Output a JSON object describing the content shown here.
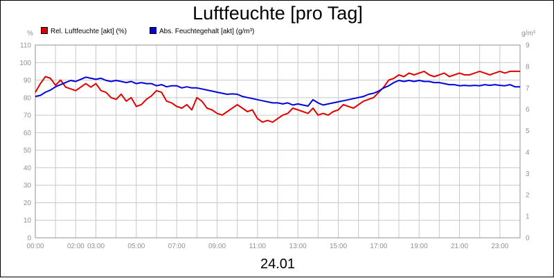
{
  "title": "Luftfeuchte [pro Tag]",
  "date": "24.01",
  "units": {
    "left": "%",
    "right": "g/m³"
  },
  "legend": [
    {
      "label": "Rel. Luftfeuchte [akt] (%)",
      "color": "#e00000"
    },
    {
      "label": "Abs. Feuchtegehalt [akt] (g/m³)",
      "color": "#0000dd"
    }
  ],
  "chart_data": {
    "type": "line",
    "title": "Luftfeuchte [pro Tag]",
    "xlabel": "24.01",
    "x_range_hours": [
      0,
      24
    ],
    "x_ticks": [
      {
        "h": 0,
        "label": "00:00"
      },
      {
        "h": 2,
        "label": "02:00"
      },
      {
        "h": 3,
        "label": "03:00"
      },
      {
        "h": 5,
        "label": "05:00"
      },
      {
        "h": 7,
        "label": "07:00"
      },
      {
        "h": 9,
        "label": "09:00"
      },
      {
        "h": 11,
        "label": "11:00"
      },
      {
        "h": 13,
        "label": "13:00"
      },
      {
        "h": 15,
        "label": "15:00"
      },
      {
        "h": 17,
        "label": "17:00"
      },
      {
        "h": 19,
        "label": "19:00"
      },
      {
        "h": 21,
        "label": "21:00"
      },
      {
        "h": 23,
        "label": "23:00"
      }
    ],
    "y_left": {
      "unit": "%",
      "min": 0,
      "max": 110,
      "ticks": [
        0,
        10,
        20,
        30,
        40,
        50,
        60,
        70,
        80,
        90,
        100,
        110
      ]
    },
    "y_right": {
      "unit": "g/m³",
      "min": 0,
      "max": 9,
      "ticks": [
        0,
        1,
        2,
        3,
        4,
        5,
        6,
        7,
        8,
        9
      ]
    },
    "grid": true,
    "legend_position": "top-left",
    "series": [
      {
        "name": "Rel. Luftfeuchte [akt] (%)",
        "color": "#e00000",
        "axis": "left",
        "points": [
          [
            0.0,
            83
          ],
          [
            0.25,
            88
          ],
          [
            0.5,
            92
          ],
          [
            0.75,
            91
          ],
          [
            1.0,
            87
          ],
          [
            1.25,
            90
          ],
          [
            1.5,
            86
          ],
          [
            1.75,
            85
          ],
          [
            2.0,
            84
          ],
          [
            2.25,
            86
          ],
          [
            2.5,
            88
          ],
          [
            2.75,
            86
          ],
          [
            3.0,
            88
          ],
          [
            3.25,
            84
          ],
          [
            3.5,
            83
          ],
          [
            3.75,
            80
          ],
          [
            4.0,
            79
          ],
          [
            4.25,
            82
          ],
          [
            4.5,
            78
          ],
          [
            4.75,
            80
          ],
          [
            5.0,
            75
          ],
          [
            5.25,
            76
          ],
          [
            5.5,
            79
          ],
          [
            5.75,
            81
          ],
          [
            6.0,
            84
          ],
          [
            6.25,
            83
          ],
          [
            6.5,
            78
          ],
          [
            6.75,
            77
          ],
          [
            7.0,
            75
          ],
          [
            7.25,
            74
          ],
          [
            7.5,
            76
          ],
          [
            7.75,
            73
          ],
          [
            8.0,
            80
          ],
          [
            8.25,
            78
          ],
          [
            8.5,
            74
          ],
          [
            8.75,
            73
          ],
          [
            9.0,
            71
          ],
          [
            9.25,
            70
          ],
          [
            9.5,
            72
          ],
          [
            9.75,
            74
          ],
          [
            10.0,
            76
          ],
          [
            10.25,
            74
          ],
          [
            10.5,
            72
          ],
          [
            10.75,
            73
          ],
          [
            11.0,
            68
          ],
          [
            11.25,
            66
          ],
          [
            11.5,
            67
          ],
          [
            11.75,
            66
          ],
          [
            12.0,
            68
          ],
          [
            12.25,
            70
          ],
          [
            12.5,
            71
          ],
          [
            12.75,
            74
          ],
          [
            13.0,
            73
          ],
          [
            13.25,
            72
          ],
          [
            13.5,
            71
          ],
          [
            13.75,
            74
          ],
          [
            14.0,
            70
          ],
          [
            14.25,
            71
          ],
          [
            14.5,
            70
          ],
          [
            14.75,
            72
          ],
          [
            15.0,
            73
          ],
          [
            15.25,
            76
          ],
          [
            15.5,
            75
          ],
          [
            15.75,
            74
          ],
          [
            16.0,
            76
          ],
          [
            16.25,
            78
          ],
          [
            16.5,
            79
          ],
          [
            16.75,
            80
          ],
          [
            17.0,
            83
          ],
          [
            17.25,
            86
          ],
          [
            17.5,
            90
          ],
          [
            17.75,
            91
          ],
          [
            18.0,
            93
          ],
          [
            18.25,
            92
          ],
          [
            18.5,
            94
          ],
          [
            18.75,
            93
          ],
          [
            19.0,
            94
          ],
          [
            19.25,
            95
          ],
          [
            19.5,
            93
          ],
          [
            19.75,
            92
          ],
          [
            20.0,
            93
          ],
          [
            20.25,
            94
          ],
          [
            20.5,
            92
          ],
          [
            20.75,
            93
          ],
          [
            21.0,
            94
          ],
          [
            21.25,
            93
          ],
          [
            21.5,
            93
          ],
          [
            21.75,
            94
          ],
          [
            22.0,
            95
          ],
          [
            22.25,
            94
          ],
          [
            22.5,
            93
          ],
          [
            22.75,
            94
          ],
          [
            23.0,
            95
          ],
          [
            23.25,
            94
          ],
          [
            23.5,
            95
          ],
          [
            23.75,
            95
          ],
          [
            24.0,
            95
          ]
        ]
      },
      {
        "name": "Abs. Feuchtegehalt [akt] (g/m³)",
        "color": "#0000dd",
        "axis": "right",
        "points": [
          [
            0.0,
            6.6
          ],
          [
            0.25,
            6.65
          ],
          [
            0.5,
            6.8
          ],
          [
            0.75,
            6.9
          ],
          [
            1.0,
            7.05
          ],
          [
            1.25,
            7.15
          ],
          [
            1.5,
            7.25
          ],
          [
            1.75,
            7.35
          ],
          [
            2.0,
            7.3
          ],
          [
            2.25,
            7.4
          ],
          [
            2.5,
            7.5
          ],
          [
            2.75,
            7.45
          ],
          [
            3.0,
            7.4
          ],
          [
            3.25,
            7.45
          ],
          [
            3.5,
            7.35
          ],
          [
            3.75,
            7.3
          ],
          [
            4.0,
            7.35
          ],
          [
            4.25,
            7.3
          ],
          [
            4.5,
            7.25
          ],
          [
            4.75,
            7.3
          ],
          [
            5.0,
            7.2
          ],
          [
            5.25,
            7.25
          ],
          [
            5.5,
            7.2
          ],
          [
            5.75,
            7.2
          ],
          [
            6.0,
            7.1
          ],
          [
            6.25,
            7.15
          ],
          [
            6.5,
            7.05
          ],
          [
            6.75,
            7.1
          ],
          [
            7.0,
            7.1
          ],
          [
            7.25,
            7.0
          ],
          [
            7.5,
            7.05
          ],
          [
            7.75,
            7.0
          ],
          [
            8.0,
            7.0
          ],
          [
            8.25,
            6.95
          ],
          [
            8.5,
            6.9
          ],
          [
            8.75,
            6.85
          ],
          [
            9.0,
            6.8
          ],
          [
            9.25,
            6.75
          ],
          [
            9.5,
            6.7
          ],
          [
            9.75,
            6.72
          ],
          [
            10.0,
            6.7
          ],
          [
            10.25,
            6.6
          ],
          [
            10.5,
            6.55
          ],
          [
            10.75,
            6.5
          ],
          [
            11.0,
            6.45
          ],
          [
            11.25,
            6.4
          ],
          [
            11.5,
            6.35
          ],
          [
            11.75,
            6.3
          ],
          [
            12.0,
            6.3
          ],
          [
            12.25,
            6.25
          ],
          [
            12.5,
            6.3
          ],
          [
            12.75,
            6.2
          ],
          [
            13.0,
            6.25
          ],
          [
            13.25,
            6.2
          ],
          [
            13.5,
            6.15
          ],
          [
            13.75,
            6.45
          ],
          [
            14.0,
            6.3
          ],
          [
            14.25,
            6.2
          ],
          [
            14.5,
            6.25
          ],
          [
            14.75,
            6.3
          ],
          [
            15.0,
            6.35
          ],
          [
            15.25,
            6.4
          ],
          [
            15.5,
            6.45
          ],
          [
            15.75,
            6.5
          ],
          [
            16.0,
            6.55
          ],
          [
            16.25,
            6.6
          ],
          [
            16.5,
            6.7
          ],
          [
            16.75,
            6.75
          ],
          [
            17.0,
            6.85
          ],
          [
            17.25,
            7.0
          ],
          [
            17.5,
            7.1
          ],
          [
            17.75,
            7.25
          ],
          [
            18.0,
            7.35
          ],
          [
            18.25,
            7.3
          ],
          [
            18.5,
            7.35
          ],
          [
            18.75,
            7.3
          ],
          [
            19.0,
            7.35
          ],
          [
            19.25,
            7.3
          ],
          [
            19.5,
            7.3
          ],
          [
            19.75,
            7.25
          ],
          [
            20.0,
            7.25
          ],
          [
            20.25,
            7.2
          ],
          [
            20.5,
            7.15
          ],
          [
            20.75,
            7.15
          ],
          [
            21.0,
            7.1
          ],
          [
            21.25,
            7.12
          ],
          [
            21.5,
            7.1
          ],
          [
            21.75,
            7.12
          ],
          [
            22.0,
            7.1
          ],
          [
            22.25,
            7.15
          ],
          [
            22.5,
            7.12
          ],
          [
            22.75,
            7.15
          ],
          [
            23.0,
            7.12
          ],
          [
            23.25,
            7.1
          ],
          [
            23.5,
            7.15
          ],
          [
            23.75,
            7.05
          ],
          [
            24.0,
            7.05
          ]
        ]
      }
    ]
  }
}
